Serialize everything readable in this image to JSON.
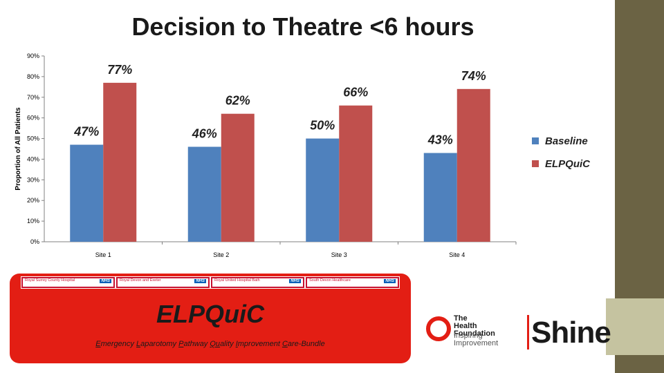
{
  "slide": {
    "title": "Decision to Theatre <6 hours"
  },
  "banner": {
    "title": "ELPQuiC",
    "subtitle_parts": [
      "E",
      "mergency ",
      "L",
      "aparotomy ",
      "P",
      "athway ",
      "Qu",
      "ality ",
      "I",
      "mprovement ",
      "C",
      "are-Bundle"
    ],
    "hospitals": [
      {
        "name": "Royal Surrey County Hospital",
        "badge": "NHS"
      },
      {
        "name": "Royal Devon and Exeter",
        "badge": "NHS"
      },
      {
        "name": "Royal United Hospital Bath",
        "badge": "NHS"
      },
      {
        "name": "South Devon Healthcare",
        "badge": "NHS"
      }
    ]
  },
  "logos": {
    "health_foundation_name": [
      "The",
      "Health",
      "Foundation"
    ],
    "health_foundation_tag": [
      "Inspiring",
      "Improvement"
    ],
    "shine": "Shine"
  },
  "colors": {
    "baseline": "#4f81bd",
    "elpquic": "#c0504d",
    "banner": "#e31e14",
    "deco_dark": "#6b6344",
    "deco_light": "#c5c3a0"
  },
  "chart_data": {
    "type": "bar",
    "title": "Decision to Theatre <6 hours",
    "ylabel": "Proportion of All Patients",
    "xlabel": "",
    "categories": [
      "Site 1",
      "Site 2",
      "Site 3",
      "Site 4"
    ],
    "series": [
      {
        "name": "Baseline",
        "values": [
          47,
          46,
          50,
          43
        ],
        "labels": [
          "47%",
          "46%",
          "50%",
          "43%"
        ]
      },
      {
        "name": "ELPQuiC",
        "values": [
          77,
          62,
          66,
          74
        ],
        "labels": [
          "77%",
          "62%",
          "66%",
          "74%"
        ]
      }
    ],
    "ylim": [
      0,
      90
    ],
    "yticks": [
      "0%",
      "10%",
      "20%",
      "30%",
      "40%",
      "50%",
      "60%",
      "70%",
      "80%",
      "90%"
    ],
    "grid": false,
    "legend": "right"
  }
}
